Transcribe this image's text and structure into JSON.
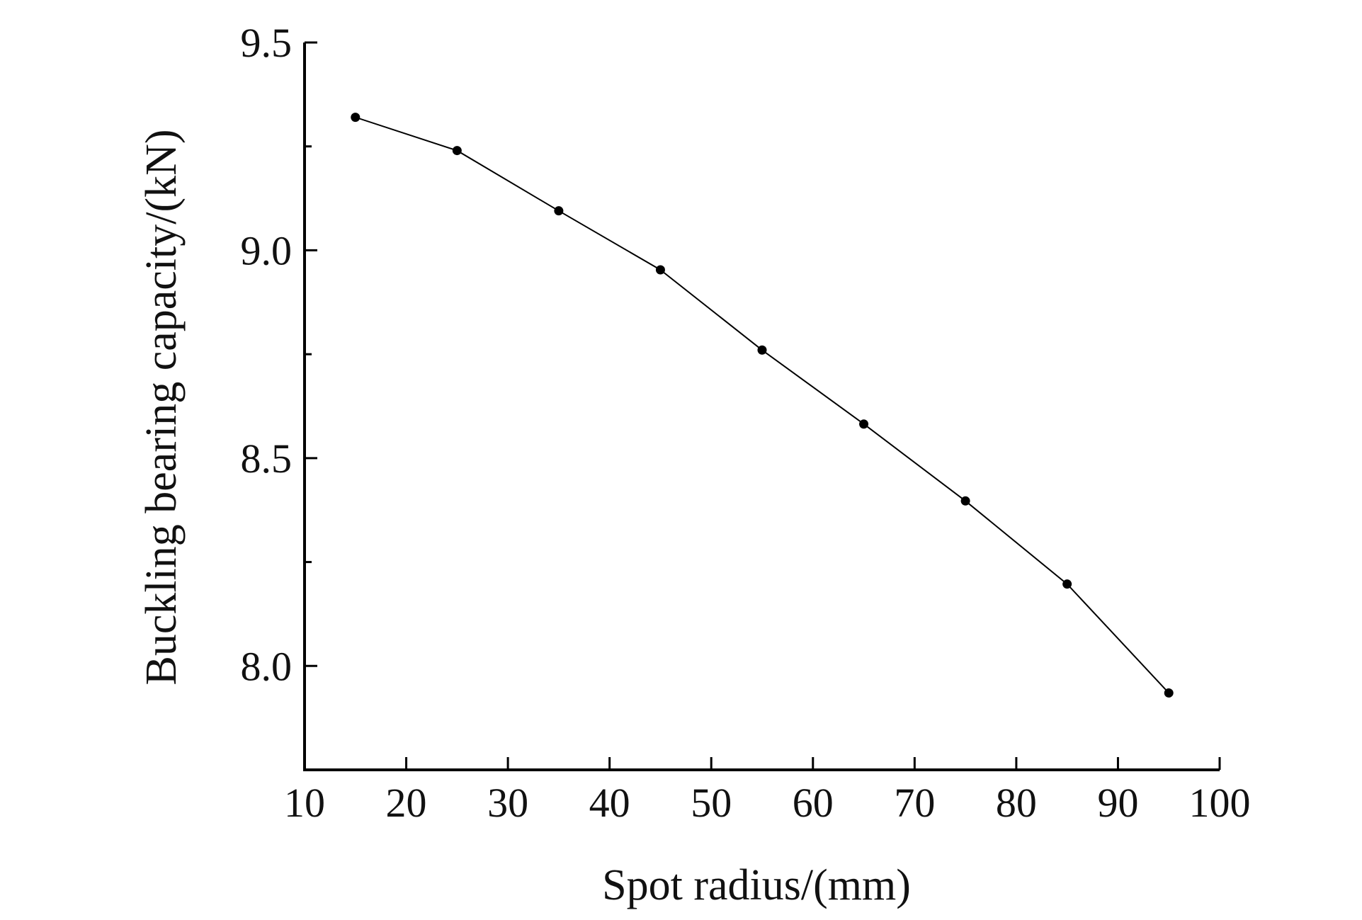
{
  "chart_data": {
    "type": "line",
    "title": "",
    "xlabel": "Spot radius/(mm)",
    "ylabel": "Buckling bearing capacity/(kN)",
    "xlim": [
      10,
      100
    ],
    "ylim": [
      7.75,
      9.5
    ],
    "x_ticks": [
      10,
      20,
      30,
      40,
      50,
      60,
      70,
      80,
      90,
      100
    ],
    "x_tick_labels": [
      "10",
      "20",
      "30",
      "40",
      "50",
      "60",
      "70",
      "80",
      "90",
      "100"
    ],
    "y_ticks": [
      8.0,
      8.5,
      9.0,
      9.5
    ],
    "y_tick_labels": [
      "8.0",
      "8.5",
      "9.0",
      "9.5"
    ],
    "y_minor_ticks": [
      8.25,
      8.75,
      9.25
    ],
    "grid": false,
    "legend": "none",
    "series": [
      {
        "x": [
          15,
          25,
          35,
          45,
          55,
          65,
          75,
          85,
          95
        ],
        "y": [
          9.32,
          9.24,
          9.095,
          8.953,
          8.76,
          8.582,
          8.397,
          8.197,
          7.935
        ],
        "marker": "circle",
        "color": "#000000"
      }
    ]
  }
}
